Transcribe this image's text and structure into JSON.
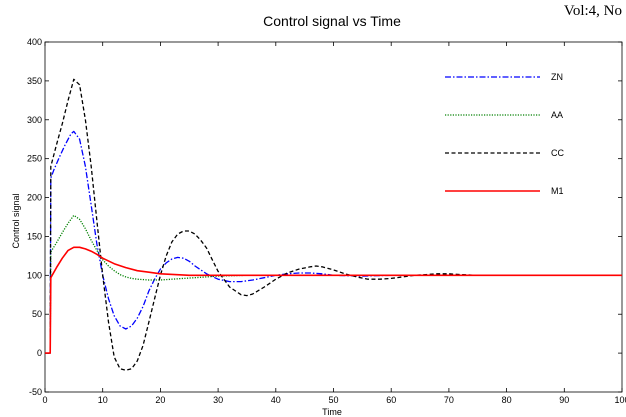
{
  "page": {
    "header_text": "Vol:4, No"
  },
  "chart_data": {
    "type": "line",
    "title": "Control signal vs Time",
    "xlabel": "Time",
    "ylabel": "Control signal",
    "xlim": [
      0,
      100
    ],
    "ylim": [
      -50,
      400
    ],
    "x_ticks": [
      0,
      10,
      20,
      30,
      40,
      50,
      60,
      70,
      80,
      90,
      100
    ],
    "x_tick_labels": [
      "0",
      "10",
      "20",
      "30",
      "40",
      "50",
      "60",
      "70",
      "80",
      "90",
      "100"
    ],
    "y_ticks": [
      -50,
      0,
      50,
      100,
      150,
      200,
      250,
      300,
      350,
      400
    ],
    "y_tick_labels": [
      "-50",
      "0",
      "50",
      "100",
      "150",
      "200",
      "250",
      "300",
      "350",
      "400"
    ],
    "grid": false,
    "legend_position": "top-right",
    "series": [
      {
        "name": "ZN",
        "color": "#0000ff",
        "dash": "dashdot",
        "x": [
          0,
          0.9,
          1,
          1.5,
          2.5,
          3.5,
          4.5,
          5,
          6,
          7,
          8,
          9,
          10,
          11,
          12,
          13,
          14,
          15,
          16,
          17,
          18,
          19,
          20,
          21,
          22,
          23,
          24,
          25,
          26,
          28,
          30,
          32,
          34,
          36,
          38,
          40,
          42,
          44,
          46,
          48,
          50,
          55,
          60,
          65,
          70,
          80,
          90,
          100
        ],
        "y": [
          0,
          0,
          225,
          235,
          252,
          268,
          282,
          285,
          275,
          240,
          190,
          140,
          100,
          70,
          48,
          35,
          31,
          35,
          45,
          60,
          80,
          95,
          108,
          116,
          121,
          123,
          122,
          118,
          112,
          102,
          95,
          92,
          92,
          94,
          97,
          100,
          102,
          103,
          103,
          102,
          100,
          99,
          100,
          100,
          100,
          100,
          100,
          100
        ]
      },
      {
        "name": "AA",
        "color": "#008000",
        "dash": "dotted",
        "x": [
          0,
          0.9,
          1,
          2,
          3,
          4,
          5,
          6,
          7,
          8,
          9,
          10,
          11,
          12,
          13,
          14,
          15,
          16,
          18,
          20,
          22,
          24,
          26,
          28,
          30,
          35,
          40,
          50,
          60,
          70,
          80,
          90,
          100
        ],
        "y": [
          0,
          0,
          130,
          142,
          155,
          167,
          177,
          172,
          160,
          145,
          132,
          120,
          112,
          106,
          101,
          98,
          96,
          95,
          94,
          94,
          95,
          96,
          97,
          98,
          99,
          100,
          100,
          100,
          100,
          100,
          100,
          100,
          100
        ]
      },
      {
        "name": "CC",
        "color": "#000000",
        "dash": "dashed",
        "x": [
          0,
          0.9,
          1,
          2,
          3,
          4,
          5,
          6,
          7,
          8,
          9,
          10,
          11,
          12,
          13,
          14,
          15,
          16,
          17,
          18,
          19,
          20,
          21,
          22,
          23,
          24,
          25,
          26,
          27,
          28,
          29,
          30,
          32,
          34,
          35,
          36,
          38,
          40,
          42,
          44,
          46,
          47,
          48,
          50,
          52,
          54,
          56,
          58,
          60,
          62,
          64,
          66,
          68,
          70,
          72,
          75,
          80,
          90,
          100
        ],
        "y": [
          0,
          0,
          240,
          268,
          295,
          325,
          352,
          345,
          300,
          240,
          170,
          100,
          40,
          -5,
          -20,
          -22,
          -20,
          -10,
          10,
          40,
          70,
          100,
          125,
          143,
          153,
          157,
          157,
          153,
          145,
          135,
          120,
          105,
          85,
          75,
          74,
          76,
          85,
          95,
          103,
          108,
          111,
          112,
          111,
          107,
          102,
          98,
          95,
          95,
          96,
          98,
          100,
          101,
          102,
          102,
          101,
          100,
          100,
          100,
          100
        ]
      },
      {
        "name": "M1",
        "color": "#ff0000",
        "dash": "solid",
        "x": [
          0,
          0.9,
          1,
          2,
          3,
          4,
          5,
          6,
          7,
          8,
          9,
          10,
          12,
          14,
          16,
          18,
          20,
          25,
          30,
          40,
          50,
          60,
          70,
          80,
          90,
          100
        ],
        "y": [
          0,
          0,
          97,
          110,
          122,
          132,
          136,
          136,
          134,
          131,
          127,
          122,
          115,
          110,
          106,
          104,
          102,
          100,
          100,
          100,
          100,
          100,
          100,
          100,
          100,
          100
        ]
      }
    ]
  }
}
